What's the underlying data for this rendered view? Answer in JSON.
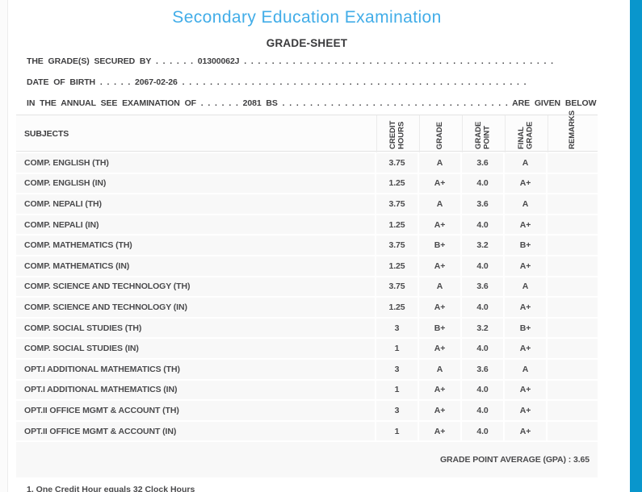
{
  "page": {
    "title": "Secondary Education Examination",
    "subtitle": "GRADE-SHEET",
    "accent_color": "#42ade8",
    "scrollbar_color": "#0996cc"
  },
  "info_lines": {
    "grades_secured": {
      "label": "THE GRADE(S) SECURED BY",
      "dots_before": ". . . . . .",
      "value": "01300062J",
      "dots_after": ". . . . . . . . . . . . . . . . . . . . . . . . . . . . . . . . . . . . . . . . . . . . ."
    },
    "date_of_birth": {
      "label": "DATE OF BIRTH",
      "dots_before": ". . . . .",
      "value": "2067-02-26",
      "dots_after": ". . . . . . . . . . . . . . . . . . . . . . . . . . . . . . . . . . . . . . . . . . . . . . . . . ."
    },
    "examination_of": {
      "label": "IN THE ANNUAL SEE EXAMINATION OF",
      "dots_before": ". . . . . .",
      "value": "2081 BS",
      "dots_after": ". . . . . . . . . . . . . . . . . . . . . . . . . . . . . . . . .",
      "suffix": "ARE GIVEN BELOW",
      "dots_end": ". . ."
    }
  },
  "table": {
    "columns": [
      "SUBJECTS",
      "CREDIT HOURS",
      "GRADE",
      "GRADE POINT",
      "FINAL GRADE",
      "REMARKS"
    ],
    "rows": [
      {
        "subject": "COMP. ENGLISH (TH)",
        "credit_hours": "3.75",
        "grade": "A",
        "grade_point": "3.6",
        "final_grade": "A",
        "remarks": ""
      },
      {
        "subject": "COMP. ENGLISH (IN)",
        "credit_hours": "1.25",
        "grade": "A+",
        "grade_point": "4.0",
        "final_grade": "A+",
        "remarks": ""
      },
      {
        "subject": "COMP. NEPALI (TH)",
        "credit_hours": "3.75",
        "grade": "A",
        "grade_point": "3.6",
        "final_grade": "A",
        "remarks": ""
      },
      {
        "subject": "COMP. NEPALI (IN)",
        "credit_hours": "1.25",
        "grade": "A+",
        "grade_point": "4.0",
        "final_grade": "A+",
        "remarks": ""
      },
      {
        "subject": "COMP. MATHEMATICS (TH)",
        "credit_hours": "3.75",
        "grade": "B+",
        "grade_point": "3.2",
        "final_grade": "B+",
        "remarks": ""
      },
      {
        "subject": "COMP. MATHEMATICS (IN)",
        "credit_hours": "1.25",
        "grade": "A+",
        "grade_point": "4.0",
        "final_grade": "A+",
        "remarks": ""
      },
      {
        "subject": "COMP. SCIENCE AND TECHNOLOGY (TH)",
        "credit_hours": "3.75",
        "grade": "A",
        "grade_point": "3.6",
        "final_grade": "A",
        "remarks": ""
      },
      {
        "subject": "COMP. SCIENCE AND TECHNOLOGY (IN)",
        "credit_hours": "1.25",
        "grade": "A+",
        "grade_point": "4.0",
        "final_grade": "A+",
        "remarks": ""
      },
      {
        "subject": "COMP. SOCIAL STUDIES (TH)",
        "credit_hours": "3",
        "grade": "B+",
        "grade_point": "3.2",
        "final_grade": "B+",
        "remarks": ""
      },
      {
        "subject": "COMP. SOCIAL STUDIES (IN)",
        "credit_hours": "1",
        "grade": "A+",
        "grade_point": "4.0",
        "final_grade": "A+",
        "remarks": ""
      },
      {
        "subject": "OPT.I ADDITIONAL MATHEMATICS (TH)",
        "credit_hours": "3",
        "grade": "A",
        "grade_point": "3.6",
        "final_grade": "A",
        "remarks": ""
      },
      {
        "subject": "OPT.I ADDITIONAL MATHEMATICS (IN)",
        "credit_hours": "1",
        "grade": "A+",
        "grade_point": "4.0",
        "final_grade": "A+",
        "remarks": ""
      },
      {
        "subject": "OPT.II OFFICE MGMT & ACCOUNT (TH)",
        "credit_hours": "3",
        "grade": "A+",
        "grade_point": "4.0",
        "final_grade": "A+",
        "remarks": ""
      },
      {
        "subject": "OPT.II OFFICE MGMT & ACCOUNT (IN)",
        "credit_hours": "1",
        "grade": "A+",
        "grade_point": "4.0",
        "final_grade": "A+",
        "remarks": ""
      }
    ],
    "gpa_label": "GRADE POINT AVERAGE (GPA) : 3.65"
  },
  "footnote": "1. One Credit Hour equals 32 Clock Hours"
}
